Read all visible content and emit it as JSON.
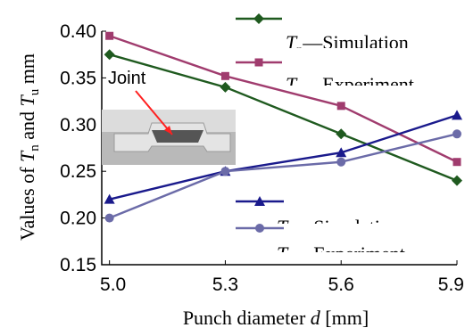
{
  "chart_data": {
    "type": "line",
    "xlabel": "Punch diameter d [mm]",
    "ylabel": "Values of Tn and Tu mm",
    "x": [
      5.0,
      5.3,
      5.6,
      5.9
    ],
    "x_tick_labels": [
      "5.0",
      "5.3",
      "5.6",
      "5.9"
    ],
    "xlim": [
      4.98,
      5.9
    ],
    "ylim": [
      0.15,
      0.4
    ],
    "y_ticks": [
      0.15,
      0.2,
      0.25,
      0.3,
      0.35,
      0.4
    ],
    "y_tick_labels": [
      "0.15",
      "0.20",
      "0.25",
      "0.30",
      "0.35",
      "0.40"
    ],
    "grid": false,
    "series": [
      {
        "name": "Tn—Simulation",
        "color": "#1f5a1f",
        "marker": "diamond",
        "values": [
          0.375,
          0.34,
          0.29,
          0.24
        ]
      },
      {
        "name": "Tn—Experiment",
        "color": "#a03c6e",
        "marker": "square",
        "values": [
          0.395,
          0.352,
          0.32,
          0.26
        ]
      },
      {
        "name": "Tu—Simulation",
        "color": "#1a1a8c",
        "marker": "triangle",
        "values": [
          0.22,
          0.25,
          0.27,
          0.31
        ]
      },
      {
        "name": "Tu—Experiment",
        "color": "#6b6ba8",
        "marker": "circle",
        "values": [
          0.2,
          0.25,
          0.26,
          0.29
        ]
      }
    ],
    "annotations": [
      {
        "text": "Joint"
      }
    ]
  }
}
